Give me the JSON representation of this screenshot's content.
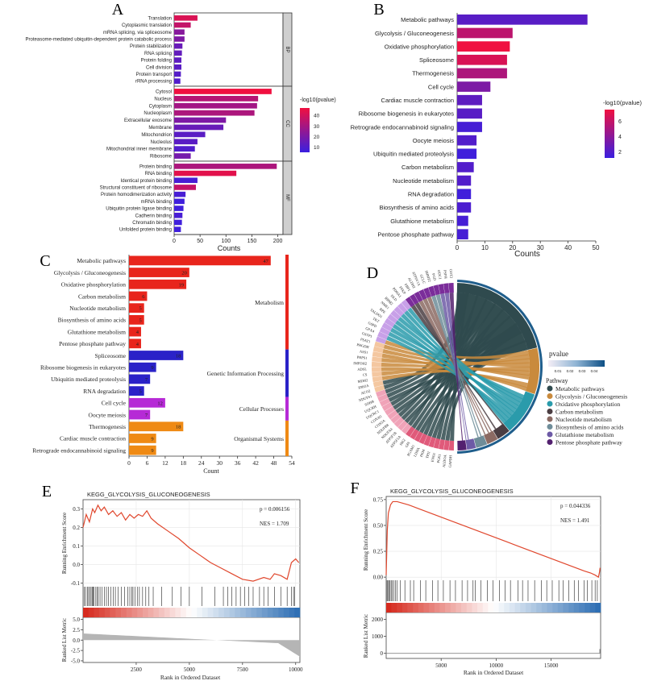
{
  "panel_letters": [
    "A",
    "B",
    "C",
    "D",
    "E",
    "F"
  ],
  "chart_data": [
    {
      "panel": "A",
      "type": "bar",
      "orientation": "horizontal",
      "xlabel": "Counts",
      "xticks": [
        0,
        50,
        100,
        150,
        200
      ],
      "xlim": [
        0,
        210
      ],
      "legend_title": "-log10(pvalue)",
      "legend_ticks": [
        10,
        20,
        30,
        40
      ],
      "color_low": "#3a1fe0",
      "color_high": "#f01040",
      "groups": [
        {
          "name": "BP",
          "categories": [
            "Translation",
            "Cytoplasmic translation",
            "mRNA splicing, via spliceosome",
            "Proteasome-mediated ubiquitin-dependent protein catabolic process",
            "Protein stabilization",
            "RNA splicing",
            "Protein folding",
            "Cell division",
            "Protein transport",
            "rRNA processing"
          ],
          "values": [
            45,
            32,
            20,
            20,
            16,
            15,
            14,
            14,
            13,
            12
          ],
          "neglog10p": [
            40,
            35,
            22,
            20,
            15,
            14,
            13,
            12,
            11,
            10
          ]
        },
        {
          "name": "CC",
          "categories": [
            "Cytosol",
            "Nucleus",
            "Cytoplasm",
            "Nucleoplasm",
            "Extracellular exosome",
            "Membrane",
            "Mitochondrion",
            "Nucleolus",
            "Mitochondrial inner membrane",
            "Ribosome"
          ],
          "values": [
            188,
            162,
            160,
            155,
            100,
            95,
            60,
            45,
            40,
            32
          ],
          "neglog10p": [
            45,
            32,
            28,
            30,
            20,
            15,
            12,
            12,
            10,
            18
          ]
        },
        {
          "name": "MF",
          "categories": [
            "Protein binding",
            "RNA binding",
            "Identical protein binding",
            "Structural constituent of ribosome",
            "Protein homodimerization activity",
            "mRNA binding",
            "Ubiquitin protein ligase binding",
            "Cadherin binding",
            "Chromatin binding",
            "Unfolded protein binding"
          ],
          "values": [
            198,
            120,
            45,
            42,
            22,
            20,
            18,
            16,
            15,
            13
          ],
          "neglog10p": [
            30,
            42,
            8,
            35,
            8,
            6,
            6,
            8,
            6,
            6
          ]
        }
      ]
    },
    {
      "panel": "B",
      "type": "bar",
      "orientation": "horizontal",
      "xlabel": "Counts",
      "xticks": [
        0,
        10,
        20,
        30,
        40,
        50
      ],
      "xlim": [
        0,
        50
      ],
      "legend_title": "-log10(pvalue)",
      "legend_ticks": [
        2,
        4,
        6
      ],
      "color_low": "#3a1fe0",
      "color_high": "#f01040",
      "categories": [
        "Metabolic pathways",
        "Glycolysis / Gluconeogenesis",
        "Oxidative phosphorylation",
        "Spliceosome",
        "Thermogenesis",
        "Cell cycle",
        "Cardiac muscle contraction",
        "Ribosome biogenesis in eukaryotes",
        "Retrograde endocannabinoid signaling",
        "Oocyte meiosis",
        "Ubiquitin mediated proteolysis",
        "Carbon metabolism",
        "Nucleotide metabolism",
        "RNA degradation",
        "Biosynthesis of amino acids",
        "Glutathione metabolism",
        "Pentose phosphate pathway"
      ],
      "values": [
        47,
        20,
        19,
        18,
        18,
        12,
        9,
        9,
        9,
        7,
        7,
        6,
        5,
        5,
        5,
        4,
        4
      ],
      "neglog10p": [
        2.2,
        5.5,
        7.2,
        6.4,
        5.0,
        3.4,
        2.4,
        2.2,
        1.6,
        2.0,
        1.4,
        2.0,
        2.0,
        1.4,
        1.8,
        1.6,
        1.6
      ]
    },
    {
      "panel": "C",
      "type": "bar",
      "orientation": "horizontal",
      "xlabel": "Count",
      "xticks": [
        0,
        6,
        12,
        18,
        24,
        30,
        36,
        42,
        48,
        54
      ],
      "xlim": [
        0,
        54
      ],
      "categories": [
        "Metabolic pathways",
        "Glycolysis / Gluconeogenesis",
        "Oxidative phosphorylation",
        "Carbon metabolism",
        "Nucleotide metabolism",
        "Biosynthesis of amino acids",
        "Glutathione metabolism",
        "Pentose phosphate pathway",
        "Spliceosome",
        "Ribosome biogenesis in eukaryotes",
        "Ubiquitin mediated proteolysis",
        "RNA degradation",
        "Cell cycle",
        "Oocyte meiosis",
        "Thermogenesis",
        "Cardiac muscle contraction",
        "Retrograde endocannabinoid signaling"
      ],
      "values": [
        47,
        20,
        19,
        6,
        5,
        5,
        4,
        4,
        18,
        9,
        7,
        5,
        12,
        7,
        18,
        9,
        9
      ],
      "value_labels": [
        "47",
        "20",
        "19",
        "6",
        "5",
        "5",
        "4",
        "4",
        "18",
        "9",
        "7",
        "5",
        "12",
        "7",
        "18",
        "9",
        "9"
      ],
      "groups": [
        {
          "name": "Metabolism",
          "color": "#e8251c",
          "count": 8
        },
        {
          "name": "Genetic Information Processing",
          "color": "#2a22c8",
          "count": 4
        },
        {
          "name": "Cellular Processes",
          "color": "#b62ad6",
          "count": 2
        },
        {
          "name": "Organismal Systems",
          "color": "#ef8a14",
          "count": 3
        }
      ]
    },
    {
      "panel": "D",
      "type": "chord",
      "legend_pvalue_title": "pvalue",
      "pvalue_ticks": [
        "0.01",
        "0.02",
        "0.03",
        "0.04"
      ],
      "legend_pathway_title": "Pathway",
      "pathways": [
        "Metabolic pathways",
        "Glycolysis / Gluconeogenesis",
        "Oxidative phosphorylation",
        "Carbon metabolism",
        "Nucleotide metabolism",
        "Biosynthesis of amino acids",
        "Glutathione metabolism",
        "Pentose phosphate pathway"
      ],
      "pathway_colors": [
        "#2f4a4e",
        "#c98a3c",
        "#2a9bab",
        "#4a3d42",
        "#8b6a63",
        "#6f8d99",
        "#6d5aa6",
        "#53206f"
      ],
      "pathway_gene_counts": [
        47,
        20,
        19,
        6,
        5,
        5,
        4,
        4
      ],
      "gene_labels": [
        "GAPDH",
        "ALDOA",
        "PGK1",
        "ENO1",
        "TPI1",
        "PKM",
        "LDHA",
        "PGAM1",
        "GPI",
        "HK2",
        "ATP5F1A",
        "ATP5F1B",
        "NDUFA4",
        "NDUFB8",
        "COX5A",
        "COX4I1",
        "UQCRC1",
        "UQCRH",
        "SDHB",
        "NDUFS1",
        "ACO2",
        "IDH3A",
        "MDH2",
        "CS",
        "ADSL",
        "IMPDH2",
        "PRPS1",
        "ASS1",
        "PHGDH",
        "PSAT1",
        "GSTP1",
        "GPX4",
        "G6PD",
        "TKT",
        "TALDO1",
        "RPE",
        "NME1",
        "RRM2",
        "DLD",
        "PDHA1",
        "PFKP",
        "FBP1",
        "ALDH2",
        "ATP6V1A",
        "GCLC",
        "SHMT2",
        "PGD",
        "ODC1",
        "PSPH",
        "GOT2"
      ]
    },
    {
      "panel": "E",
      "type": "line",
      "title": "KEGG_GLYCOLYSIS_GLUCONEOGENESIS",
      "p_label": "p = 0.006156",
      "nes_label": "NES = 1.709",
      "ylabel_top": "Running Enrichment Score",
      "ylabel_bottom": "Ranked List Metric",
      "xlabel": "Rank in Ordered Dataset",
      "xlim": [
        0,
        10200
      ],
      "ylim": [
        -0.12,
        0.35
      ],
      "yticks": [
        -0.1,
        0.0,
        0.1,
        0.2,
        0.3
      ],
      "ytick_labels": [
        "-0.1",
        "0.0",
        "0.1",
        "0.2",
        "0.3"
      ],
      "xticks": [
        2500,
        5000,
        7500,
        10000
      ],
      "metric_ticks": [
        5.0,
        2.5,
        0.0,
        -2.5,
        -5.0
      ],
      "metric_tick_labels": [
        "5.0",
        "2.5",
        "0.0",
        "-2.5",
        "-5.0"
      ],
      "metric_range": [
        -5.4,
        5.5
      ],
      "x": [
        0,
        150,
        300,
        450,
        550,
        700,
        850,
        1000,
        1200,
        1400,
        1600,
        1800,
        2000,
        2200,
        2400,
        2600,
        2800,
        3000,
        3200,
        3500,
        4000,
        4500,
        5000,
        5500,
        6000,
        6500,
        7000,
        7500,
        8000,
        8500,
        8800,
        9000,
        9300,
        9600,
        9800,
        10000,
        10150
      ],
      "y": [
        0.2,
        0.27,
        0.23,
        0.3,
        0.28,
        0.32,
        0.29,
        0.31,
        0.27,
        0.29,
        0.26,
        0.28,
        0.24,
        0.27,
        0.25,
        0.27,
        0.26,
        0.29,
        0.25,
        0.22,
        0.18,
        0.14,
        0.09,
        0.05,
        0.01,
        -0.02,
        -0.05,
        -0.08,
        -0.09,
        -0.07,
        -0.08,
        -0.05,
        -0.06,
        -0.08,
        0.01,
        0.03,
        0.01
      ],
      "hit_positions": [
        60,
        120,
        200,
        260,
        320,
        380,
        430,
        470,
        520,
        600,
        660,
        720,
        800,
        900,
        1000,
        1100,
        1200,
        1300,
        1420,
        1520,
        1650,
        1800,
        1950,
        2100,
        2200,
        2300,
        2350,
        2450,
        2550,
        2650,
        2800,
        2950,
        3100,
        3300,
        3700,
        4200,
        4600,
        5000,
        5600,
        6200,
        6600,
        6800,
        7000,
        7200,
        7400,
        7600,
        7800,
        8000,
        8300,
        8500,
        8700,
        9000,
        9300,
        9600,
        9800,
        9900,
        9950
      ]
    },
    {
      "panel": "F",
      "type": "line",
      "title": "KEGG_GLYCOLYSIS_GLUCONEOGENESIS",
      "p_label": "p = 0.044336",
      "nes_label": "NES = 1.491",
      "ylabel_top": "Running Enrichment Score",
      "ylabel_bottom": "Ranked List Metric",
      "xlabel": "Rank in Ordered Dataset",
      "xlim": [
        0,
        19500
      ],
      "ylim": [
        -0.03,
        0.78
      ],
      "yticks": [
        0.0,
        0.25,
        0.5,
        0.75
      ],
      "ytick_labels": [
        "0.00",
        "0.25",
        "0.50",
        "0.75"
      ],
      "xticks": [
        5000,
        10000,
        15000
      ],
      "metric_ticks": [
        0,
        1000,
        2000
      ],
      "metric_tick_labels": [
        "0",
        "1000",
        "2000"
      ],
      "metric_range": [
        -300,
        2400
      ],
      "x": [
        0,
        100,
        200,
        400,
        600,
        1000,
        2000,
        3000,
        4000,
        5000,
        6000,
        7000,
        8000,
        9000,
        10000,
        11000,
        12000,
        13000,
        14000,
        15000,
        16000,
        17000,
        18000,
        18600,
        19000,
        19300,
        19400,
        19450
      ],
      "y": [
        0.02,
        0.45,
        0.62,
        0.7,
        0.73,
        0.73,
        0.7,
        0.66,
        0.62,
        0.58,
        0.54,
        0.5,
        0.46,
        0.42,
        0.38,
        0.34,
        0.3,
        0.26,
        0.22,
        0.18,
        0.14,
        0.1,
        0.06,
        0.04,
        0.02,
        0.0,
        0.05,
        0.09
      ],
      "hit_positions": [
        80,
        150,
        250,
        350,
        450,
        560,
        700,
        850,
        1000,
        1300,
        1700,
        2200,
        2500,
        3100,
        3600,
        4200,
        4700,
        5200,
        5800,
        6300,
        6900,
        7400,
        7900,
        8100,
        8600,
        9200,
        9700,
        10300,
        10800,
        11300,
        12000,
        12400,
        12900,
        13500,
        14100,
        14600,
        15100,
        15700,
        16100,
        16600,
        17100,
        17500,
        18000,
        18300,
        18700,
        19000,
        19200
      ]
    }
  ]
}
